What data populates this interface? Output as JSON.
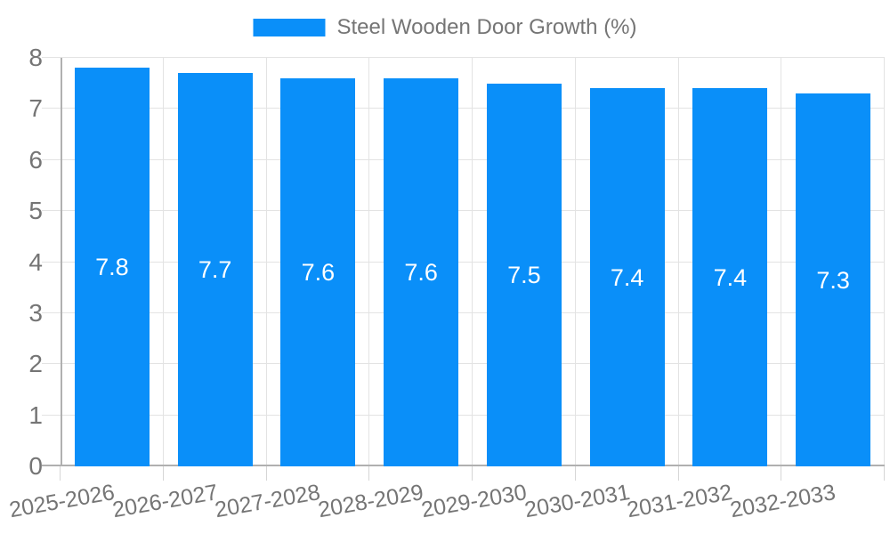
{
  "chart_data": {
    "type": "bar",
    "title": "",
    "legend_label": "Steel Wooden Door Growth (%)",
    "legend_position": "top",
    "categories": [
      "2025-2026",
      "2026-2027",
      "2027-2028",
      "2028-2029",
      "2029-2030",
      "2030-2031",
      "2031-2032",
      "2032-2033"
    ],
    "series": [
      {
        "name": "Steel Wooden Door Growth (%)",
        "values": [
          7.8,
          7.7,
          7.6,
          7.6,
          7.5,
          7.4,
          7.4,
          7.3
        ]
      }
    ],
    "value_labels": [
      "7.8",
      "7.7",
      "7.6",
      "7.6",
      "7.5",
      "7.4",
      "7.4",
      "7.3"
    ],
    "xlabel": "",
    "ylabel": "",
    "ylim": [
      0,
      8
    ],
    "ytick_labels": [
      "0",
      "1",
      "2",
      "3",
      "4",
      "5",
      "6",
      "7",
      "8"
    ],
    "grid": true,
    "x_label_rotation_deg": -10,
    "colors": {
      "bar": "#0a8ff9",
      "grid": "#e3e3e3",
      "axis": "#b0b0b0",
      "tick": "#d6d6d6",
      "text": "#757575",
      "value_label": "#ffffff",
      "background": "#ffffff"
    }
  }
}
